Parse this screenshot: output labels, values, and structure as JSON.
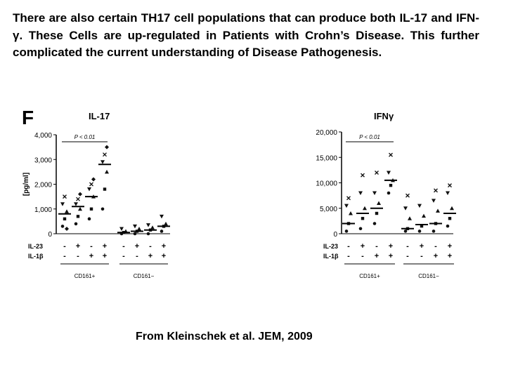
{
  "paragraph": "There are also certain  TH17 cell populations that can produce both IL-17 and IFN-γ. These Cells are up-regulated in Patients with Crohn’s Disease. This further complicated the current understanding of Disease Pathogenesis.",
  "panel_letter": "F",
  "credit": "From Kleinschek et al. JEM, 2009",
  "chart_data": [
    {
      "type": "scatter",
      "title": "IL-17",
      "ylabel": "[pg/ml]",
      "ylim": [
        0,
        4000
      ],
      "yticks": [
        "0",
        "1,000",
        "2,000",
        "3,000",
        "4,000"
      ],
      "yticks_values": [
        0,
        1000,
        2000,
        3000,
        4000
      ],
      "significance": "P < 0.01",
      "row_labels": [
        "IL-23",
        "IL-1β"
      ],
      "il23": [
        "-",
        "+",
        "-",
        "+",
        "-",
        "+",
        "-",
        "+"
      ],
      "il1b": [
        "-",
        "-",
        "+",
        "+",
        "-",
        "-",
        "+",
        "+"
      ],
      "group_labels": [
        "CD161+",
        "CD161−"
      ],
      "medians": [
        800,
        1100,
        1500,
        2800,
        50,
        100,
        150,
        300
      ],
      "points": [
        [
          300,
          600,
          900,
          1200,
          1500,
          200
        ],
        [
          400,
          700,
          1000,
          1200,
          1400,
          1600
        ],
        [
          600,
          1000,
          1500,
          1800,
          2000,
          2200
        ],
        [
          1000,
          1800,
          2500,
          2900,
          3200,
          3500
        ],
        [
          0,
          50,
          100,
          200
        ],
        [
          0,
          100,
          200,
          300
        ],
        [
          0,
          150,
          250,
          350
        ],
        [
          100,
          300,
          400,
          700
        ]
      ]
    },
    {
      "type": "scatter",
      "title": "IFNγ",
      "ylabel": "",
      "ylim": [
        0,
        20000
      ],
      "yticks": [
        "0",
        "5,000",
        "10,000",
        "15,000",
        "20,000"
      ],
      "yticks_values": [
        0,
        5000,
        10000,
        15000,
        20000
      ],
      "significance": "P < 0.01",
      "row_labels": [
        "IL-23",
        "IL-1β"
      ],
      "il23": [
        "-",
        "+",
        "-",
        "+",
        "-",
        "+",
        "-",
        "+"
      ],
      "il1b": [
        "-",
        "-",
        "+",
        "+",
        "-",
        "-",
        "+",
        "+"
      ],
      "group_labels": [
        "CD161+",
        "CD161−"
      ],
      "medians": [
        2000,
        4000,
        5000,
        10500,
        1000,
        1800,
        2000,
        4000
      ],
      "points": [
        [
          500,
          2000,
          4000,
          5500,
          7000
        ],
        [
          1000,
          3000,
          5000,
          8000,
          11500
        ],
        [
          2000,
          4000,
          6000,
          8000,
          12000
        ],
        [
          8000,
          9500,
          10500,
          12000,
          15500
        ],
        [
          500,
          1000,
          3000,
          5000,
          7500
        ],
        [
          500,
          1500,
          3500,
          5500
        ],
        [
          500,
          2000,
          4500,
          6500,
          8500
        ],
        [
          1500,
          3000,
          5000,
          8000,
          9500
        ]
      ]
    }
  ]
}
